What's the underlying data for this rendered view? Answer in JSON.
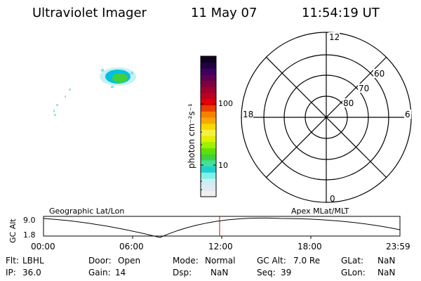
{
  "header": {
    "instrument": "Ultraviolet Imager",
    "date": "11 May 07",
    "time": "11:54:19 UT"
  },
  "image_panel": {
    "auroral_blobs": [
      {
        "color": "#00c0e0"
      },
      {
        "color": "#40e040"
      },
      {
        "color": "#a0e8f0"
      }
    ]
  },
  "colorbar": {
    "unit_label": "photon cm⁻²s⁻¹",
    "tick_labels": [
      "100",
      "10"
    ],
    "colors": [
      "#f0f0f0",
      "#e0e8f0",
      "#c8f0f0",
      "#80f0e8",
      "#20d0d0",
      "#40e0a0",
      "#40d040",
      "#60e000",
      "#a0f000",
      "#e0f000",
      "#f8f040",
      "#f8d800",
      "#f8a800",
      "#f88000",
      "#e84000",
      "#e00000",
      "#c00020",
      "#a00030",
      "#800040",
      "#600050",
      "#400060",
      "#200040",
      "#100020"
    ]
  },
  "polar_plot": {
    "mlt_labels": {
      "top": "12",
      "bottom": "0",
      "left": "18",
      "right": "6"
    },
    "lat_labels": [
      "60",
      "70",
      "80"
    ]
  },
  "altitude_plot": {
    "y_axis_label": "GC Alt",
    "y_ticks": [
      "9.0",
      "1.8"
    ],
    "left_title": "Geographic Lat/Lon",
    "right_title": "Apex MLat/MLT",
    "x_ticks": [
      "00:00",
      "06:00",
      "12:00",
      "18:00",
      "23:59"
    ],
    "marker_color": "#e00000"
  },
  "info": {
    "row1": [
      {
        "label": "Flt:",
        "value": "LBHL"
      },
      {
        "label": "Door:",
        "value": "Open"
      },
      {
        "label": "Mode:",
        "value": "Normal"
      },
      {
        "label": "GC Alt:",
        "value": "7.0 Re"
      },
      {
        "label": "GLat:",
        "value": "NaN"
      }
    ],
    "row2": [
      {
        "label": "IP:",
        "value": "36.0"
      },
      {
        "label": "Gain:",
        "value": "14"
      },
      {
        "label": "Dsp:",
        "value": "NaN"
      },
      {
        "label": "Seq:",
        "value": "39"
      },
      {
        "label": "GLon:",
        "value": "NaN"
      }
    ]
  }
}
